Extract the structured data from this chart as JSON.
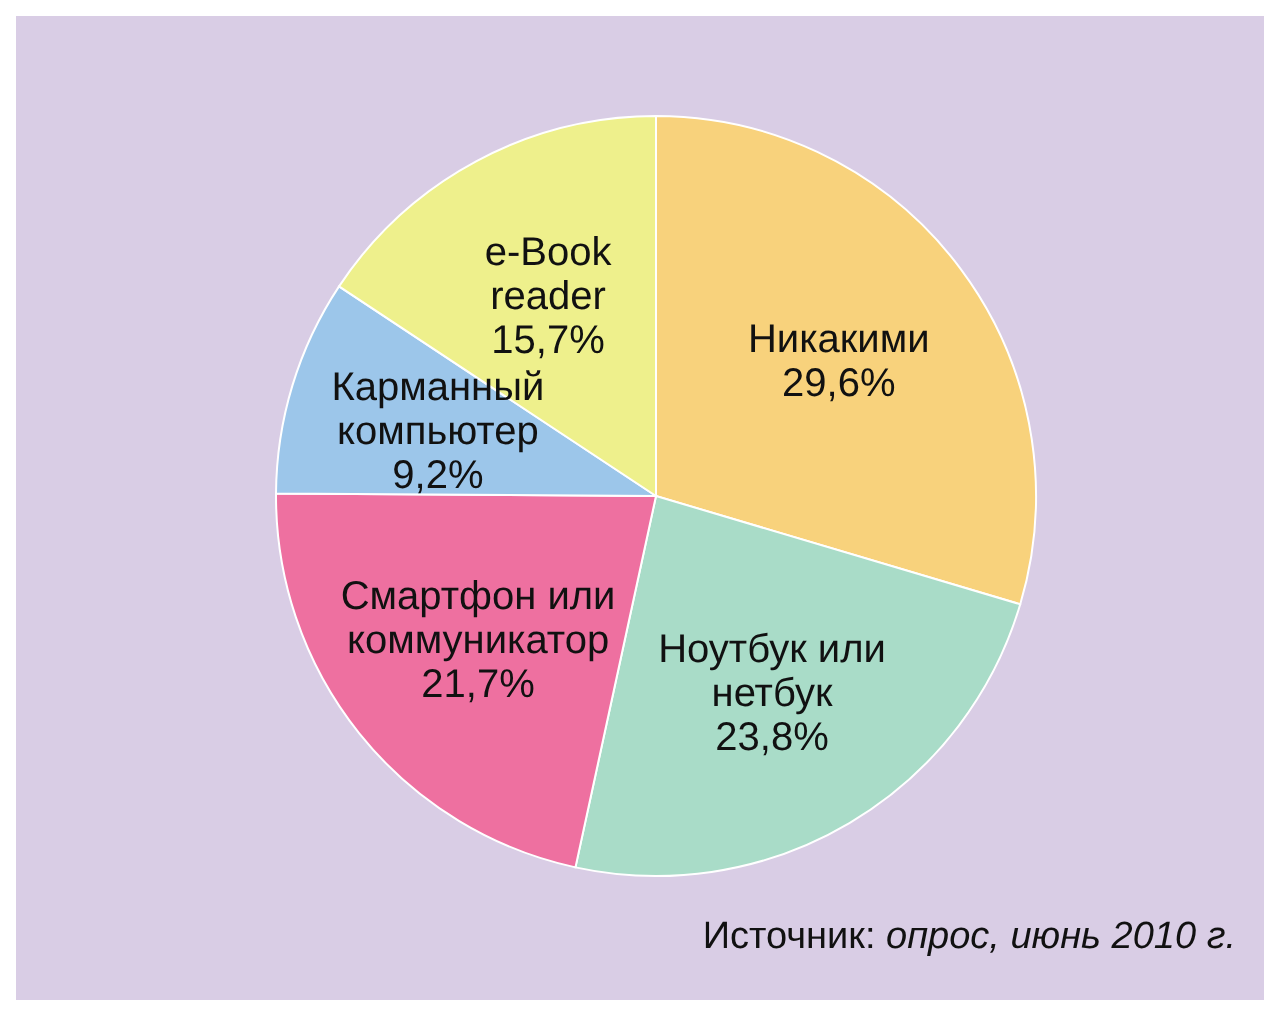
{
  "chart_data": {
    "type": "pie",
    "categories": [
      "Никакими",
      "Ноутбук или нетбук",
      "Смартфон или коммуникатор",
      "Карманный компьютер",
      "e-Book reader"
    ],
    "values": [
      29.6,
      23.8,
      21.7,
      9.2,
      15.7
    ],
    "value_labels": [
      "29,6%",
      "23,8%",
      "21,7%",
      "9,2%",
      "15,7%"
    ],
    "colors": [
      "#f8d27c",
      "#a9dcc8",
      "#ee70a0",
      "#9cc6ea",
      "#eef08c"
    ],
    "annotations": [
      "Источник: опрос, июнь 2010 г."
    ]
  }
}
